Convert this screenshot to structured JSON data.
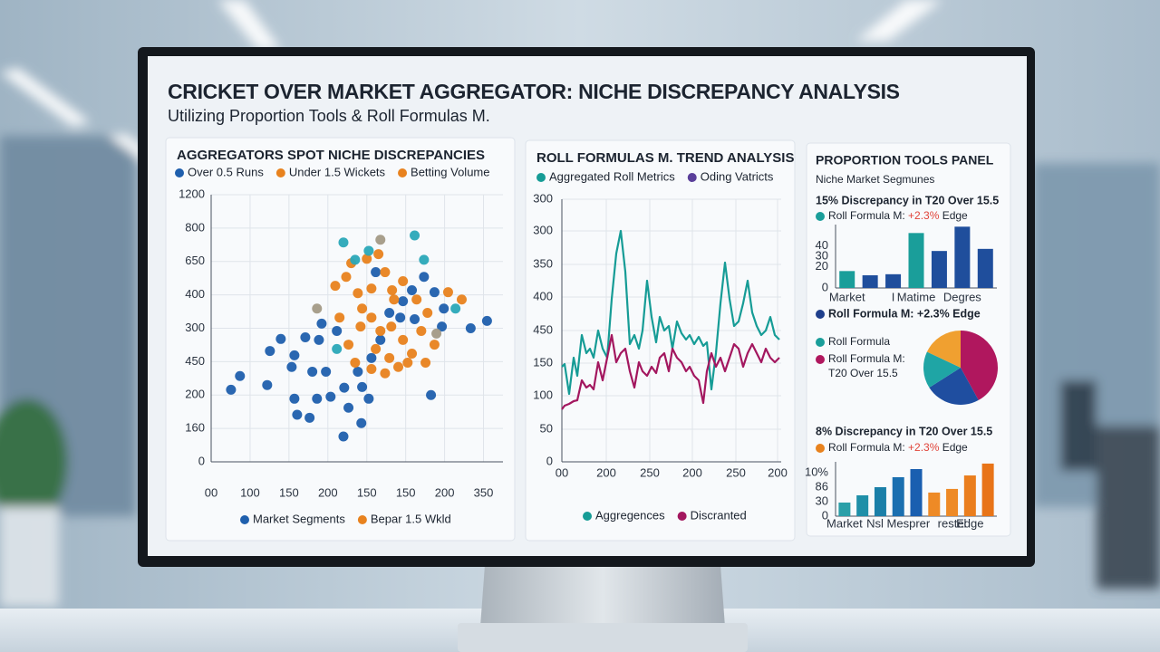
{
  "header": {
    "title": "CRICKET OVER MARKET AGGREGATOR: NICHE DISCREPANCY ANALYSIS",
    "subtitle": "Utilizing Proportion Tools & Roll Formulas M."
  },
  "panel": {
    "title": "PROPORTION TOOLS PANEL",
    "subtitle": "Niche Market Segmunes"
  },
  "chart_data": [
    {
      "type": "scatter",
      "title": "AGGREGATORS SPOT NICHE DISCREPANCIES",
      "legend": [
        {
          "label": "Over 0.5 Runs",
          "color": "#1f5fad"
        },
        {
          "label": "Under 1.5 Wickets",
          "color": "#e8821e"
        },
        {
          "label": "Betting Volume",
          "color": "#e8821e"
        }
      ],
      "legend_bottom": [
        {
          "label": "Market Segments",
          "color": "#1f5fad"
        },
        {
          "label": "Bepar 1.5 Wkld",
          "color": "#e8821e"
        }
      ],
      "xlim": [
        0,
        7.5
      ],
      "ylim": [
        0,
        8
      ],
      "xticks": [
        {
          "value": 0,
          "label": "00"
        },
        {
          "value": 1,
          "label": "100"
        },
        {
          "value": 2,
          "label": "150"
        },
        {
          "value": 3,
          "label": "200"
        },
        {
          "value": 4,
          "label": "150"
        },
        {
          "value": 5,
          "label": "150"
        },
        {
          "value": 6,
          "label": "200"
        },
        {
          "value": 7,
          "label": "350"
        }
      ],
      "yticks": [
        0,
        {
          "value": 1,
          "label": "160"
        },
        {
          "value": 2,
          "label": "200"
        },
        {
          "value": 3,
          "label": "450"
        },
        {
          "value": 4,
          "label": "300"
        },
        {
          "value": 5,
          "label": "400"
        },
        {
          "value": 6,
          "label": "650"
        },
        {
          "value": 7,
          "label": "800"
        },
        {
          "value": 8,
          "label": "1200"
        }
      ],
      "grid": true,
      "series": [
        {
          "color": "#1f5fad",
          "x": [
            0.51,
            0.74,
            1.44,
            1.51,
            1.79,
            2.07,
            2.14,
            2.21,
            2.53,
            2.14,
            2.42,
            2.77,
            2.6,
            2.95,
            2.72,
            3.07,
            2.84,
            3.23,
            3.42,
            3.53,
            3.86,
            3.4,
            4.05,
            3.77,
            4.12,
            4.35,
            4.58,
            4.86,
            5.16,
            5.47,
            5.74,
            5.98,
            5.93,
            6.67,
            7.09,
            5.65,
            3.88,
            4.23,
            4.93,
            5.23
          ],
          "values": [
            2.16,
            2.57,
            2.3,
            3.32,
            3.68,
            2.84,
            1.89,
            1.41,
            1.32,
            3.19,
            3.73,
            3.65,
            2.7,
            2.7,
            1.89,
            1.95,
            4.14,
            3.92,
            2.22,
            1.62,
            1.16,
            0.76,
            1.89,
            2.7,
            3.11,
            3.65,
            4.46,
            4.32,
            5.14,
            5.54,
            5.08,
            4.59,
            4.05,
            4.0,
            4.22,
            2.0,
            2.24,
            5.68,
            4.81,
            4.27
          ]
        },
        {
          "color": "#e8821e",
          "x": [
            3.19,
            3.47,
            3.77,
            4.12,
            4.47,
            4.65,
            4.93,
            5.28,
            5.56,
            6.09,
            6.44,
            3.88,
            4.12,
            4.35,
            4.63,
            4.93,
            5.16,
            5.4,
            5.51,
            4.81,
            4.47,
            4.12,
            3.7,
            3.53,
            3.84,
            3.3,
            4.23,
            4.58,
            5.05,
            4.7,
            4.0,
            4.3,
            3.6,
            5.74
          ],
          "values": [
            5.27,
            5.54,
            5.05,
            5.19,
            5.68,
            5.14,
            5.41,
            4.86,
            4.46,
            5.08,
            4.86,
            4.59,
            4.32,
            3.92,
            4.05,
            3.65,
            3.24,
            3.92,
            2.97,
            2.84,
            2.65,
            2.78,
            2.97,
            3.51,
            4.05,
            4.32,
            3.38,
            3.11,
            2.97,
            4.86,
            6.08,
            6.22,
            5.95,
            3.51
          ]
        },
        {
          "color": "#2aa8b8",
          "x": [
            3.4,
            3.7,
            4.05,
            5.23,
            5.47,
            6.28,
            3.23
          ],
          "values": [
            6.57,
            6.05,
            6.32,
            6.78,
            6.05,
            4.59,
            3.38
          ]
        },
        {
          "color": "#a39a86",
          "x": [
            4.35,
            2.72,
            5.79
          ],
          "values": [
            6.65,
            4.59,
            3.84
          ]
        }
      ]
    },
    {
      "type": "line",
      "title": "ROLL FORMULAS M. TREND ANALYSIS",
      "legend": [
        {
          "label": "Aggregated Roll Metrics",
          "color": "#169c96"
        },
        {
          "label": "Oding Vatricts",
          "color": "#5a3f9a"
        }
      ],
      "legend_bottom": [
        {
          "label": "Aggregences",
          "color": "#169c96"
        },
        {
          "label": "Discranted",
          "color": "#a3175f"
        }
      ],
      "xlim": [
        0,
        242
      ],
      "ylim": [
        0,
        290
      ],
      "xticks": [
        {
          "value": 0,
          "label": "00"
        },
        {
          "value": 49,
          "label": "200"
        },
        {
          "value": 97,
          "label": "250"
        },
        {
          "value": 144,
          "label": "200"
        },
        {
          "value": 192,
          "label": "250"
        },
        {
          "value": 238,
          "label": "200"
        }
      ],
      "yticks": [
        0,
        {
          "value": 36,
          "label": "50"
        },
        {
          "value": 73,
          "label": "100"
        },
        {
          "value": 109,
          "label": "150"
        },
        {
          "value": 145,
          "label": "450"
        },
        {
          "value": 182,
          "label": "400"
        },
        {
          "value": 218,
          "label": "350"
        },
        {
          "value": 255,
          "label": "300"
        },
        {
          "value": 290,
          "label": "300"
        }
      ],
      "grid": true,
      "x": [
        0,
        3,
        8,
        13,
        17,
        22,
        27,
        31,
        35,
        40,
        45,
        50,
        55,
        60,
        65,
        70,
        75,
        80,
        85,
        89,
        94,
        99,
        104,
        108,
        113,
        118,
        122,
        127,
        132,
        137,
        141,
        146,
        151,
        156,
        160,
        165,
        170,
        175,
        180,
        185,
        190,
        195,
        200,
        205,
        210,
        215,
        220,
        225,
        230,
        235,
        240
      ],
      "series": [
        {
          "color": "#169c96",
          "values": [
            105,
            108,
            75,
            115,
            95,
            140,
            120,
            125,
            115,
            145,
            125,
            115,
            180,
            230,
            255,
            210,
            130,
            140,
            125,
            145,
            200,
            160,
            132,
            160,
            145,
            150,
            125,
            155,
            142,
            135,
            140,
            130,
            138,
            128,
            132,
            80,
            120,
            175,
            220,
            180,
            150,
            155,
            175,
            200,
            165,
            150,
            140,
            145,
            160,
            140,
            135
          ]
        },
        {
          "color": "#a3175f",
          "values": [
            58,
            62,
            64,
            67,
            68,
            90,
            82,
            85,
            80,
            110,
            90,
            115,
            140,
            110,
            120,
            125,
            100,
            82,
            110,
            100,
            95,
            105,
            98,
            115,
            120,
            100,
            125,
            115,
            110,
            100,
            105,
            95,
            90,
            65,
            100,
            120,
            105,
            115,
            100,
            115,
            130,
            125,
            105,
            120,
            130,
            120,
            110,
            125,
            115,
            110,
            115
          ]
        }
      ]
    },
    {
      "type": "bar",
      "title": "15% Discrepancy in T20 Over 15.5",
      "legend": [
        {
          "label": [
            "Roll Formula M: ",
            "+2.3%",
            " Edge"
          ],
          "color": "#1a9e9a",
          "accent": "#e0443a"
        }
      ],
      "categories": [
        "Market",
        null,
        "I",
        "Matime",
        null,
        "Degres",
        null
      ],
      "values": [
        16,
        12,
        13,
        52,
        35,
        58,
        37
      ],
      "colors": [
        "#1a9e9a",
        "#1f4e9c",
        "#1f4e9c",
        "#1a9e9a",
        "#1f4e9c",
        "#1f4e9c",
        "#1f4e9c"
      ],
      "ylim": [
        0,
        60
      ],
      "yticks": [
        0,
        20,
        30,
        40
      ]
    },
    {
      "type": "pie",
      "title": "Roll Formula M: +2.3% Edge",
      "title_color": "#1f3f8c",
      "legend": [
        {
          "label": "Roll Formula",
          "color": "#1a9e9a"
        },
        {
          "label": "Roll Formula M:",
          "sublabel": "T20 Over 15.5",
          "color": "#b0175e"
        }
      ],
      "values": [
        42,
        24,
        16,
        18
      ],
      "colors": [
        "#b0175e",
        "#1f4ea0",
        "#1fa5a5",
        "#f0a030"
      ]
    },
    {
      "type": "bar",
      "title": "8% Discrepancy in T20 Over 15.5",
      "legend": [
        {
          "label": [
            "Roll Formula M: ",
            "+2.3%",
            " Edge"
          ],
          "color": "#e8821e",
          "accent": "#e0443a"
        }
      ],
      "categories": [
        "Market",
        null,
        null,
        "Nsl Mesprer",
        null,
        null,
        "restel",
        "Edge",
        null
      ],
      "values": [
        0.94,
        1.44,
        2.0,
        2.69,
        3.25,
        1.63,
        1.88,
        2.81,
        3.63
      ],
      "colors": [
        "#2a9fa8",
        "#1f8fa8",
        "#1a7fa8",
        "#1a6fb0",
        "#1a5fb0",
        "#ee8a26",
        "#ee8a26",
        "#ea7e1e",
        "#e87418"
      ],
      "ylim": [
        0,
        3.75
      ],
      "yticks": [
        0,
        {
          "value": 1,
          "label": "30"
        },
        {
          "value": 2,
          "label": "86"
        },
        {
          "value": 3,
          "label": "10%"
        }
      ]
    }
  ]
}
